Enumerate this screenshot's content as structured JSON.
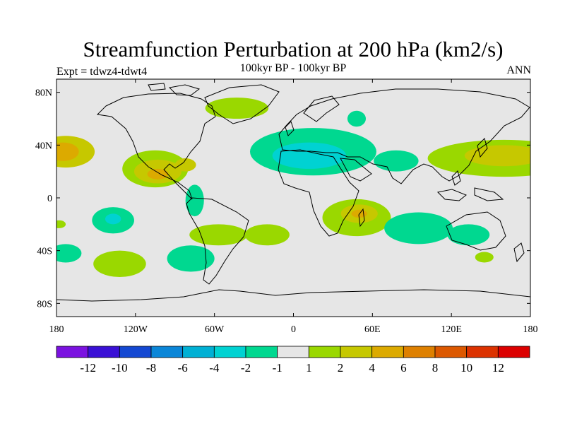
{
  "title": "Streamfunction Perturbation at 200 hPa (km2/s)",
  "subtitle": "100kyr BP - 100kyr BP",
  "experiment": "Expt = tdwz4-tdwt4",
  "season": "ANN",
  "map": {
    "projection": "cylindrical-equidistant",
    "lon_range": [
      -180,
      180
    ],
    "lat_range": [
      -90,
      90
    ],
    "lat_ticks": [
      {
        "value": 80,
        "label": "80N"
      },
      {
        "value": 40,
        "label": "40N"
      },
      {
        "value": 0,
        "label": "0"
      },
      {
        "value": -40,
        "label": "40S"
      },
      {
        "value": -80,
        "label": "80S"
      }
    ],
    "lon_ticks": [
      {
        "value": -180,
        "label": "180"
      },
      {
        "value": -120,
        "label": "120W"
      },
      {
        "value": -60,
        "label": "60W"
      },
      {
        "value": 0,
        "label": "0"
      },
      {
        "value": 60,
        "label": "60E"
      },
      {
        "value": 120,
        "label": "120E"
      },
      {
        "value": 180,
        "label": "180"
      }
    ],
    "background_color": "#e6e6e6",
    "coastline_color": "#000000"
  },
  "colorbar": {
    "colors": [
      "#7b12e0",
      "#3a10d6",
      "#1448d2",
      "#0a86d8",
      "#00b0d4",
      "#00d2d2",
      "#00d890",
      "#e6e6e6",
      "#9ad800",
      "#c6c800",
      "#dcaa00",
      "#de8000",
      "#dc5800",
      "#dc3200",
      "#dc0000"
    ],
    "labels": [
      "-12",
      "-10",
      "-8",
      "-6",
      "-4",
      "-2",
      "-1",
      "1",
      "2",
      "4",
      "6",
      "8",
      "10",
      "12"
    ]
  },
  "anomalies": [
    {
      "lon": -173,
      "lat": 35,
      "rlon": 22,
      "rlat": 12,
      "level": 9
    },
    {
      "lon": -175,
      "lat": 35,
      "rlon": 12,
      "rlat": 7,
      "level": 10
    },
    {
      "lon": -105,
      "lat": 22,
      "rlon": 25,
      "rlat": 14,
      "level": 8
    },
    {
      "lon": -103,
      "lat": 20,
      "rlon": 18,
      "rlat": 9,
      "level": 9
    },
    {
      "lon": -103,
      "lat": 18,
      "rlon": 8,
      "rlat": 4,
      "level": 10
    },
    {
      "lon": -82,
      "lat": 25,
      "rlon": 8,
      "rlat": 5,
      "level": 9
    },
    {
      "lon": -137,
      "lat": -17,
      "rlon": 16,
      "rlat": 10,
      "level": 6
    },
    {
      "lon": -137,
      "lat": -16,
      "rlon": 6,
      "rlat": 4,
      "level": 5
    },
    {
      "lon": -75,
      "lat": -2,
      "rlon": 7,
      "rlat": 12,
      "level": 6
    },
    {
      "lon": -178,
      "lat": -20,
      "rlon": 5,
      "rlat": 3,
      "level": 8
    },
    {
      "lon": -173,
      "lat": -42,
      "rlon": 12,
      "rlat": 7,
      "level": 6
    },
    {
      "lon": -132,
      "lat": -50,
      "rlon": 20,
      "rlat": 10,
      "level": 8
    },
    {
      "lon": -57,
      "lat": -28,
      "rlon": 22,
      "rlat": 8,
      "level": 8
    },
    {
      "lon": -78,
      "lat": -46,
      "rlon": 18,
      "rlat": 10,
      "level": 6
    },
    {
      "lon": -20,
      "lat": -28,
      "rlon": 17,
      "rlat": 8,
      "level": 8
    },
    {
      "lon": -43,
      "lat": 68,
      "rlon": 24,
      "rlat": 8,
      "level": 8
    },
    {
      "lon": 15,
      "lat": 35,
      "rlon": 48,
      "rlat": 18,
      "level": 6
    },
    {
      "lon": 12,
      "lat": 32,
      "rlon": 28,
      "rlat": 10,
      "level": 5
    },
    {
      "lon": 48,
      "lat": 60,
      "rlon": 7,
      "rlat": 6,
      "level": 6
    },
    {
      "lon": 78,
      "lat": 28,
      "rlon": 17,
      "rlat": 8,
      "level": 6
    },
    {
      "lon": 48,
      "lat": -15,
      "rlon": 26,
      "rlat": 14,
      "level": 8
    },
    {
      "lon": 50,
      "lat": -12,
      "rlon": 14,
      "rlat": 7,
      "level": 9
    },
    {
      "lon": 50,
      "lat": -12,
      "rlon": 6,
      "rlat": 3,
      "level": 10
    },
    {
      "lon": 95,
      "lat": -23,
      "rlon": 26,
      "rlat": 12,
      "level": 6
    },
    {
      "lon": 160,
      "lat": 30,
      "rlon": 58,
      "rlat": 14,
      "level": 8
    },
    {
      "lon": 160,
      "lat": 32,
      "rlon": 30,
      "rlat": 8,
      "level": 9
    },
    {
      "lon": 133,
      "lat": -28,
      "rlon": 16,
      "rlat": 8,
      "level": 6
    },
    {
      "lon": 145,
      "lat": -45,
      "rlon": 7,
      "rlat": 4,
      "level": 8
    }
  ]
}
